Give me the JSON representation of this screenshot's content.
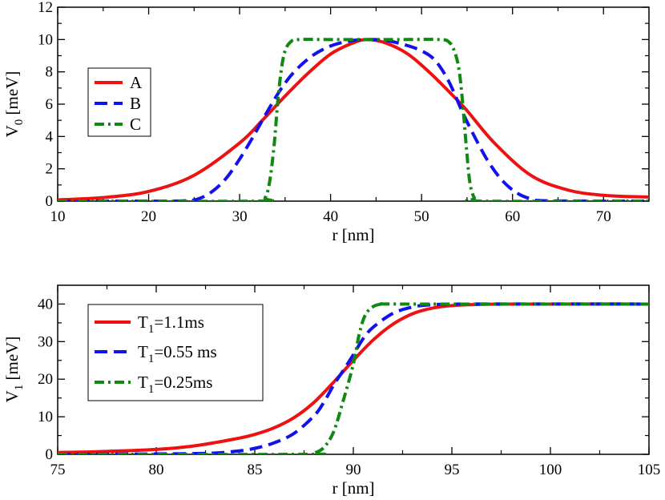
{
  "chart_data": [
    {
      "type": "line",
      "xlabel": "r [nm]",
      "ylabel": "V",
      "ylabel_sub": "0",
      "ylabel_unit": " [meV]",
      "xlim": [
        10,
        75
      ],
      "ylim": [
        0,
        12
      ],
      "xticks": [
        10,
        20,
        30,
        40,
        50,
        60,
        70
      ],
      "yticks": [
        0,
        2,
        4,
        6,
        8,
        10,
        12
      ],
      "legend_position": "left",
      "series": [
        {
          "name": "A",
          "color": "#ee1111",
          "dash": "solid",
          "x": [
            10,
            15,
            20,
            25,
            30,
            32.5,
            35,
            37.5,
            40,
            42.5,
            44,
            46,
            48.5,
            51,
            53.5,
            55,
            58,
            62,
            66,
            70,
            75
          ],
          "y": [
            0.08,
            0.22,
            0.6,
            1.6,
            3.6,
            5.0,
            6.5,
            7.9,
            9.1,
            9.8,
            10.0,
            9.8,
            9.1,
            7.9,
            6.5,
            5.6,
            3.6,
            1.6,
            0.7,
            0.36,
            0.25
          ]
        },
        {
          "name": "B",
          "color": "#1111ee",
          "dash": "dashed",
          "x": [
            10,
            20,
            24,
            25.5,
            27,
            28.5,
            30,
            31.5,
            33,
            34.5,
            36,
            38,
            40,
            42,
            44,
            46,
            48,
            50,
            51.5,
            53,
            54.5,
            56,
            57.5,
            59,
            60.5,
            62,
            64,
            75
          ],
          "y": [
            0,
            0,
            0.02,
            0.15,
            0.6,
            1.4,
            2.6,
            4.0,
            5.5,
            6.9,
            8.0,
            9.0,
            9.6,
            9.9,
            10.0,
            9.95,
            9.7,
            9.3,
            8.7,
            7.4,
            5.5,
            3.8,
            2.3,
            1.2,
            0.5,
            0.15,
            0.02,
            0
          ]
        },
        {
          "name": "C",
          "color": "#118811",
          "dash": "dashdot",
          "x": [
            10,
            32,
            32.8,
            33.3,
            33.8,
            34.2,
            34.6,
            35.0,
            35.6,
            36.5,
            40,
            44,
            48,
            52,
            53.0,
            53.6,
            54.1,
            54.5,
            54.9,
            55.3,
            55.8,
            56.5,
            75
          ],
          "y": [
            0,
            0,
            0.2,
            1.2,
            3.5,
            6.2,
            8.2,
            9.3,
            9.85,
            10.0,
            10.0,
            10.0,
            10.0,
            10.0,
            9.85,
            9.3,
            8.2,
            6.2,
            3.5,
            1.2,
            0.2,
            0,
            0
          ]
        }
      ]
    },
    {
      "type": "line",
      "xlabel": "r [nm]",
      "ylabel": "V",
      "ylabel_sub": "1",
      "ylabel_unit": " [meV]",
      "xlim": [
        75,
        105
      ],
      "ylim": [
        0,
        45
      ],
      "xticks": [
        75,
        80,
        85,
        90,
        95,
        100,
        105
      ],
      "yticks": [
        0,
        10,
        20,
        30,
        40
      ],
      "legend_position": "left",
      "series": [
        {
          "name": "T1=1.1ms",
          "name_main": "T",
          "name_sub": "1",
          "name_rest": "=1.1ms",
          "color": "#ee1111",
          "dash": "solid",
          "x": [
            75,
            77,
            80,
            82,
            84,
            85,
            86,
            87,
            88,
            89,
            90,
            91,
            92,
            93,
            94,
            95,
            97,
            100,
            105
          ],
          "y": [
            0.5,
            0.7,
            1.3,
            2.3,
            4.1,
            5.3,
            7.1,
            9.8,
            13.8,
            19.2,
            25.0,
            30.4,
            34.6,
            37.4,
            38.9,
            39.6,
            39.95,
            40,
            40
          ]
        },
        {
          "name": "T1=0.55 ms",
          "name_main": "T",
          "name_sub": "1",
          "name_rest": "=0.55 ms",
          "color": "#1111ee",
          "dash": "dashed",
          "x": [
            75,
            82,
            84,
            85,
            86,
            87,
            88,
            88.5,
            89,
            89.5,
            90,
            90.5,
            91,
            92,
            93,
            94,
            96,
            105
          ],
          "y": [
            0,
            0.2,
            0.8,
            1.6,
            3.1,
            5.6,
            10.2,
            13.8,
            18.4,
            22.4,
            26.5,
            30.8,
            33.8,
            37.5,
            39.2,
            39.8,
            40,
            40
          ]
        },
        {
          "name": "T1=0.25ms",
          "name_main": "T",
          "name_sub": "1",
          "name_rest": "=0.25ms",
          "color": "#118811",
          "dash": "dashdot",
          "x": [
            75,
            87.5,
            88.0,
            88.5,
            89,
            89.5,
            90,
            90.3,
            90.6,
            91,
            91.5,
            92.5,
            105
          ],
          "y": [
            0,
            0,
            0.3,
            1.8,
            6.0,
            14.5,
            24.0,
            32.0,
            37.0,
            39.3,
            40,
            40,
            40
          ]
        }
      ]
    }
  ]
}
